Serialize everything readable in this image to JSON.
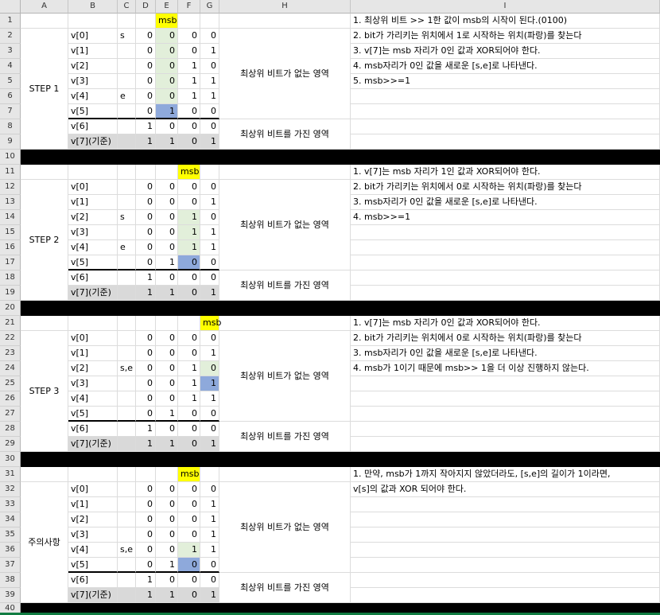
{
  "columns": [
    "A",
    "B",
    "C",
    "D",
    "E",
    "F",
    "G",
    "H",
    "I"
  ],
  "rows": [
    1,
    2,
    3,
    4,
    5,
    6,
    7,
    8,
    9,
    10,
    11,
    12,
    13,
    14,
    15,
    16,
    17,
    18,
    19,
    20,
    21,
    22,
    23,
    24,
    25,
    26,
    27,
    28,
    29,
    30,
    31,
    32,
    33,
    34,
    35,
    36,
    37,
    38,
    39,
    40
  ],
  "region_labels": {
    "no_msb": "최상위 비트가 없는 영역",
    "has_msb": "최상위 비트를 가진 영역"
  },
  "msb_label": "msb",
  "blocks": [
    {
      "label": "STEP 1",
      "rows": [
        {
          "v": "v[0]",
          "m": "s",
          "d": "0",
          "e": "0",
          "f": "0",
          "g": "0"
        },
        {
          "v": "v[1]",
          "m": "",
          "d": "0",
          "e": "0",
          "f": "0",
          "g": "1"
        },
        {
          "v": "v[2]",
          "m": "",
          "d": "0",
          "e": "0",
          "f": "1",
          "g": "0"
        },
        {
          "v": "v[3]",
          "m": "",
          "d": "0",
          "e": "0",
          "f": "1",
          "g": "1"
        },
        {
          "v": "v[4]",
          "m": "e",
          "d": "0",
          "e": "0",
          "f": "1",
          "g": "1"
        },
        {
          "v": "v[5]",
          "m": "",
          "d": "0",
          "e": "1",
          "f": "0",
          "g": "0"
        },
        {
          "v": "v[6]",
          "m": "",
          "d": "1",
          "e": "0",
          "f": "0",
          "g": "0"
        },
        {
          "v": "v[7](기준)",
          "m": "",
          "d": "1",
          "e": "1",
          "f": "0",
          "g": "1"
        }
      ],
      "notes": [
        "1. 최상위 비트 >> 1한 값이 msb의 시작이 된다.(0100)",
        "2. bit가 가리키는 위치에서 1로 시작하는 위치(파랑)를 찾는다",
        "3. v[7]는 msb 자리가 0인 값과 XOR되어야 한다.",
        "4. msb자리가 0인 값을 새로운 [s,e]로 나타낸다.",
        "5. msb>>=1"
      ]
    },
    {
      "label": "STEP 2",
      "rows": [
        {
          "v": "v[0]",
          "m": "",
          "d": "0",
          "e": "0",
          "f": "0",
          "g": "0"
        },
        {
          "v": "v[1]",
          "m": "",
          "d": "0",
          "e": "0",
          "f": "0",
          "g": "1"
        },
        {
          "v": "v[2]",
          "m": "s",
          "d": "0",
          "e": "0",
          "f": "1",
          "g": "0"
        },
        {
          "v": "v[3]",
          "m": "",
          "d": "0",
          "e": "0",
          "f": "1",
          "g": "1"
        },
        {
          "v": "v[4]",
          "m": "e",
          "d": "0",
          "e": "0",
          "f": "1",
          "g": "1"
        },
        {
          "v": "v[5]",
          "m": "",
          "d": "0",
          "e": "1",
          "f": "0",
          "g": "0"
        },
        {
          "v": "v[6]",
          "m": "",
          "d": "1",
          "e": "0",
          "f": "0",
          "g": "0"
        },
        {
          "v": "v[7](기준)",
          "m": "",
          "d": "1",
          "e": "1",
          "f": "0",
          "g": "1"
        }
      ],
      "notes": [
        "1. v[7]는 msb 자리가 1인 값과 XOR되어야 한다.",
        "2. bit가 가리키는 위치에서 0로 시작하는 위치(파랑)를 찾는다",
        "3. msb자리가 0인 값을 새로운 [s,e]로 나타낸다.",
        "4. msb>>=1"
      ]
    },
    {
      "label": "STEP 3",
      "rows": [
        {
          "v": "v[0]",
          "m": "",
          "d": "0",
          "e": "0",
          "f": "0",
          "g": "0"
        },
        {
          "v": "v[1]",
          "m": "",
          "d": "0",
          "e": "0",
          "f": "0",
          "g": "1"
        },
        {
          "v": "v[2]",
          "m": "s,e",
          "d": "0",
          "e": "0",
          "f": "1",
          "g": "0"
        },
        {
          "v": "v[3]",
          "m": "",
          "d": "0",
          "e": "0",
          "f": "1",
          "g": "1"
        },
        {
          "v": "v[4]",
          "m": "",
          "d": "0",
          "e": "0",
          "f": "1",
          "g": "1"
        },
        {
          "v": "v[5]",
          "m": "",
          "d": "0",
          "e": "1",
          "f": "0",
          "g": "0"
        },
        {
          "v": "v[6]",
          "m": "",
          "d": "1",
          "e": "0",
          "f": "0",
          "g": "0"
        },
        {
          "v": "v[7](기준)",
          "m": "",
          "d": "1",
          "e": "1",
          "f": "0",
          "g": "1"
        }
      ],
      "notes": [
        "1. v[7]는 msb 자리가 0인 값과 XOR되어야 한다.",
        "2. bit가 가리키는 위치에서 0로 시작하는 위치(파랑)를 찾는다",
        "3. msb자리가 0인 값을 새로운 [s,e]로 나타낸다.",
        "4. msb가 1이기 때문에 msb>> 1을 더 이상 진행하지 않는다."
      ]
    },
    {
      "label": "주의사항",
      "rows": [
        {
          "v": "v[0]",
          "m": "",
          "d": "0",
          "e": "0",
          "f": "0",
          "g": "0"
        },
        {
          "v": "v[1]",
          "m": "",
          "d": "0",
          "e": "0",
          "f": "0",
          "g": "1"
        },
        {
          "v": "v[2]",
          "m": "",
          "d": "0",
          "e": "0",
          "f": "0",
          "g": "1"
        },
        {
          "v": "v[3]",
          "m": "",
          "d": "0",
          "e": "0",
          "f": "0",
          "g": "1"
        },
        {
          "v": "v[4]",
          "m": "s,e",
          "d": "0",
          "e": "0",
          "f": "1",
          "g": "1"
        },
        {
          "v": "v[5]",
          "m": "",
          "d": "0",
          "e": "1",
          "f": "0",
          "g": "0"
        },
        {
          "v": "v[6]",
          "m": "",
          "d": "1",
          "e": "0",
          "f": "0",
          "g": "0"
        },
        {
          "v": "v[7](기준)",
          "m": "",
          "d": "1",
          "e": "1",
          "f": "0",
          "g": "1"
        }
      ],
      "notes": [
        "1. 만약, msb가 1까지 작아지지 않았더라도, [s,e]의 길이가 1이라면,",
        "v[s]의 값과 XOR 되어야 한다."
      ]
    }
  ]
}
